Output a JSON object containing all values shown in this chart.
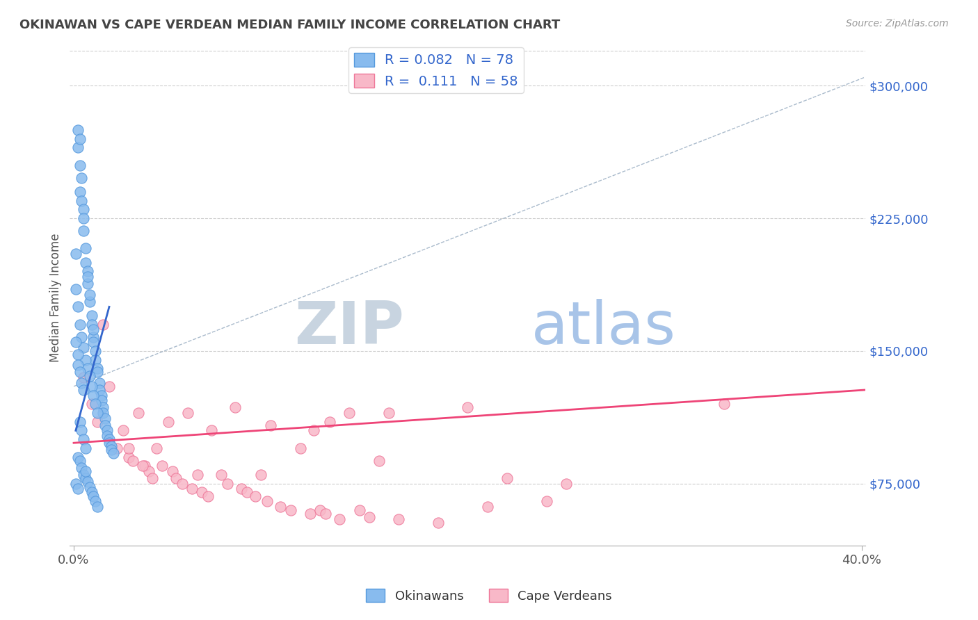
{
  "title": "OKINAWAN VS CAPE VERDEAN MEDIAN FAMILY INCOME CORRELATION CHART",
  "source_text": "Source: ZipAtlas.com",
  "ylabel": "Median Family Income",
  "xlim": [
    -0.002,
    0.402
  ],
  "ylim": [
    40000,
    320000
  ],
  "ytick_values": [
    75000,
    150000,
    225000,
    300000
  ],
  "ytick_labels": [
    "$75,000",
    "$150,000",
    "$225,000",
    "$300,000"
  ],
  "background_color": "#ffffff",
  "grid_color": "#cccccc",
  "title_color": "#444444",
  "title_fontsize": 13,
  "watermark_zip": "ZIP",
  "watermark_atlas": "atlas",
  "watermark_zip_color": "#c8d4e0",
  "watermark_atlas_color": "#a8c4e8",
  "okinawan_color": "#88bbee",
  "okinawan_edge_color": "#5599dd",
  "cape_verdean_color": "#f8b8c8",
  "cape_verdean_edge_color": "#ee7799",
  "okinawan_R": 0.082,
  "okinawan_N": 78,
  "cape_verdean_R": 0.111,
  "cape_verdean_N": 58,
  "blue_trend_x": [
    0.001,
    0.018
  ],
  "blue_trend_y": [
    105000,
    175000
  ],
  "pink_trend_x": [
    0.0,
    0.402
  ],
  "pink_trend_y": [
    98000,
    128000
  ],
  "dash_trend_x": [
    0.0,
    0.402
  ],
  "dash_trend_y": [
    130000,
    305000
  ],
  "okinawan_x": [
    0.001,
    0.002,
    0.002,
    0.003,
    0.003,
    0.003,
    0.004,
    0.004,
    0.005,
    0.005,
    0.005,
    0.006,
    0.006,
    0.007,
    0.007,
    0.007,
    0.008,
    0.008,
    0.009,
    0.009,
    0.01,
    0.01,
    0.01,
    0.011,
    0.011,
    0.012,
    0.012,
    0.013,
    0.013,
    0.014,
    0.014,
    0.015,
    0.015,
    0.016,
    0.016,
    0.017,
    0.017,
    0.018,
    0.018,
    0.019,
    0.019,
    0.02,
    0.001,
    0.002,
    0.003,
    0.004,
    0.005,
    0.006,
    0.007,
    0.008,
    0.009,
    0.01,
    0.011,
    0.012,
    0.001,
    0.002,
    0.002,
    0.003,
    0.004,
    0.005,
    0.003,
    0.004,
    0.005,
    0.006,
    0.002,
    0.003,
    0.004,
    0.005,
    0.001,
    0.002,
    0.006,
    0.006,
    0.007,
    0.008,
    0.009,
    0.01,
    0.011,
    0.012
  ],
  "okinawan_y": [
    205000,
    265000,
    275000,
    240000,
    255000,
    270000,
    235000,
    248000,
    230000,
    225000,
    218000,
    200000,
    208000,
    195000,
    188000,
    192000,
    178000,
    182000,
    170000,
    165000,
    158000,
    162000,
    155000,
    150000,
    145000,
    140000,
    138000,
    132000,
    128000,
    125000,
    122000,
    118000,
    115000,
    112000,
    108000,
    105000,
    102000,
    100000,
    98000,
    96000,
    94000,
    92000,
    185000,
    175000,
    165000,
    158000,
    152000,
    145000,
    140000,
    136000,
    130000,
    125000,
    120000,
    115000,
    155000,
    148000,
    142000,
    138000,
    132000,
    128000,
    110000,
    105000,
    100000,
    95000,
    90000,
    88000,
    84000,
    80000,
    75000,
    72000,
    78000,
    82000,
    76000,
    73000,
    70000,
    68000,
    65000,
    62000
  ],
  "cape_verdean_x": [
    0.005,
    0.009,
    0.012,
    0.015,
    0.018,
    0.022,
    0.025,
    0.028,
    0.03,
    0.033,
    0.036,
    0.038,
    0.042,
    0.045,
    0.048,
    0.05,
    0.052,
    0.055,
    0.058,
    0.06,
    0.063,
    0.065,
    0.068,
    0.07,
    0.075,
    0.078,
    0.082,
    0.085,
    0.088,
    0.092,
    0.095,
    0.098,
    0.1,
    0.105,
    0.11,
    0.115,
    0.12,
    0.122,
    0.125,
    0.128,
    0.13,
    0.135,
    0.14,
    0.145,
    0.15,
    0.155,
    0.16,
    0.165,
    0.185,
    0.2,
    0.21,
    0.22,
    0.24,
    0.25,
    0.028,
    0.035,
    0.04,
    0.33
  ],
  "cape_verdean_y": [
    135000,
    120000,
    110000,
    165000,
    130000,
    95000,
    105000,
    90000,
    88000,
    115000,
    85000,
    82000,
    95000,
    85000,
    110000,
    82000,
    78000,
    75000,
    115000,
    72000,
    80000,
    70000,
    68000,
    105000,
    80000,
    75000,
    118000,
    72000,
    70000,
    68000,
    80000,
    65000,
    108000,
    62000,
    60000,
    95000,
    58000,
    105000,
    60000,
    58000,
    110000,
    55000,
    115000,
    60000,
    56000,
    88000,
    115000,
    55000,
    53000,
    118000,
    62000,
    78000,
    65000,
    75000,
    95000,
    85000,
    78000,
    120000
  ]
}
